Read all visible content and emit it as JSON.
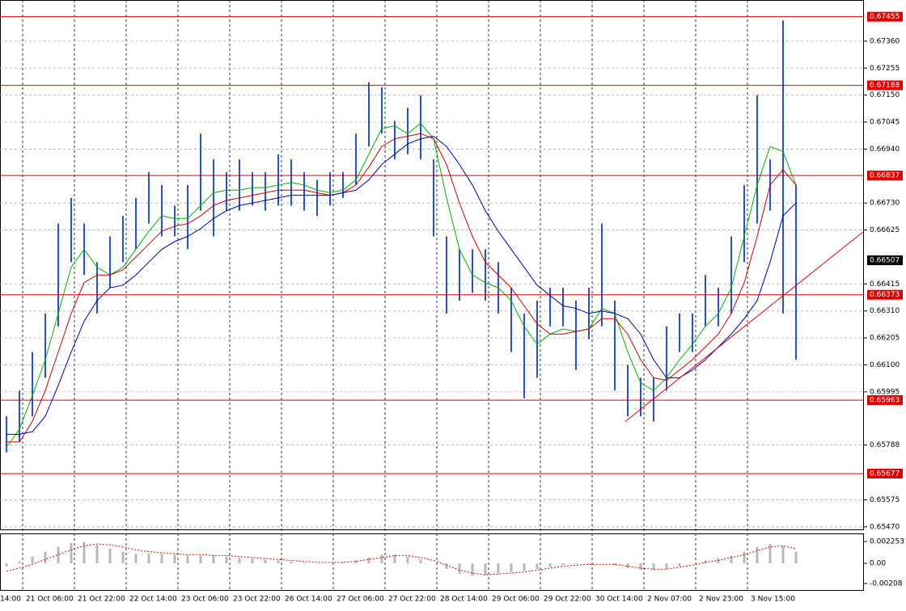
{
  "chart_data": [
    {
      "type": "ohlc",
      "categories": [
        "14:00",
        "21 Oct 06:00",
        null,
        null,
        null,
        "21 Oct 22:00",
        null,
        null,
        null,
        "22 Oct 14:00",
        null,
        null,
        null,
        "23 Oct 06:00",
        null,
        null,
        null,
        "23 Oct 22:00",
        null,
        null,
        null,
        "26 Oct 14:00",
        null,
        null,
        null,
        "27 Oct 06:00",
        null,
        null,
        null,
        "27 Oct 22:00",
        null,
        null,
        null,
        "28 Oct 14:00",
        null,
        null,
        null,
        "29 Oct 06:00",
        null,
        null,
        null,
        "29 Oct 22:00",
        null,
        null,
        null,
        "30 Oct 14:00",
        null,
        null,
        null,
        "2 Nov 07:00",
        null,
        null,
        null,
        "2 Nov 23:00",
        null,
        null,
        null,
        "3 Nov 15:00",
        null,
        null,
        null,
        null
      ],
      "color": "#2a52c8",
      "high": [
        0.659,
        0.66,
        0.6615,
        0.663,
        0.6665,
        0.6675,
        0.6665,
        0.665,
        0.666,
        0.6668,
        0.6675,
        0.6685,
        0.668,
        0.6672,
        0.668,
        0.67,
        0.669,
        0.6685,
        0.669,
        0.6685,
        0.6685,
        0.6692,
        0.669,
        0.6685,
        0.6682,
        0.6685,
        0.6685,
        0.67,
        0.672,
        0.6718,
        0.6705,
        0.671,
        0.6715,
        0.669,
        0.666,
        0.6655,
        0.6655,
        0.6655,
        0.665,
        0.664,
        0.663,
        0.6635,
        0.664,
        0.664,
        0.6635,
        0.664,
        0.6665,
        0.6635,
        0.661,
        0.6605,
        0.6605,
        0.6625,
        0.663,
        0.663,
        0.6645,
        0.664,
        0.666,
        0.668,
        0.6715,
        0.669,
        0.6744,
        0.668
      ],
      "low": [
        0.6576,
        0.658,
        0.659,
        0.6605,
        0.6625,
        0.665,
        0.6645,
        0.663,
        0.664,
        0.665,
        0.6655,
        0.6665,
        0.666,
        0.666,
        0.6655,
        0.667,
        0.666,
        0.667,
        0.667,
        0.6672,
        0.667,
        0.6672,
        0.6672,
        0.667,
        0.6668,
        0.6672,
        0.6675,
        0.668,
        0.6695,
        0.67,
        0.669,
        0.6692,
        0.669,
        0.666,
        0.663,
        0.6635,
        0.6638,
        0.6635,
        0.663,
        0.6615,
        0.6597,
        0.6605,
        0.6625,
        0.6625,
        0.6608,
        0.662,
        0.6625,
        0.66,
        0.659,
        0.659,
        0.6588,
        0.66,
        0.6615,
        0.6615,
        0.6625,
        0.6625,
        0.663,
        0.665,
        0.6665,
        0.667,
        0.663,
        0.6612
      ],
      "moving_averages": [
        {
          "color": "#00b400",
          "values": [
            0.6578,
            0.6585,
            0.6598,
            0.6612,
            0.663,
            0.6648,
            0.6655,
            0.6648,
            0.6645,
            0.6648,
            0.6655,
            0.6662,
            0.6668,
            0.6667,
            0.6667,
            0.6672,
            0.6677,
            0.6678,
            0.6678,
            0.6679,
            0.6679,
            0.668,
            0.6681,
            0.668,
            0.6678,
            0.6677,
            0.6678,
            0.6682,
            0.6692,
            0.6702,
            0.6703,
            0.67,
            0.6704,
            0.6698,
            0.6675,
            0.6655,
            0.6645,
            0.6642,
            0.664,
            0.6635,
            0.6625,
            0.6618,
            0.6622,
            0.6624,
            0.6623,
            0.6624,
            0.6632,
            0.663,
            0.6615,
            0.6603,
            0.66,
            0.6605,
            0.6612,
            0.6618,
            0.6625,
            0.663,
            0.664,
            0.666,
            0.668,
            0.6695,
            0.6693,
            0.668
          ]
        },
        {
          "color": "#d00000",
          "values": [
            0.658,
            0.658,
            0.6588,
            0.66,
            0.6615,
            0.663,
            0.6642,
            0.6645,
            0.6645,
            0.6647,
            0.6652,
            0.6657,
            0.6662,
            0.6664,
            0.6665,
            0.6668,
            0.6672,
            0.6674,
            0.6675,
            0.6676,
            0.6677,
            0.6678,
            0.6678,
            0.6678,
            0.6677,
            0.6676,
            0.6677,
            0.668,
            0.6687,
            0.6695,
            0.6698,
            0.6699,
            0.67,
            0.6698,
            0.6688,
            0.6673,
            0.666,
            0.665,
            0.6645,
            0.664,
            0.6633,
            0.6626,
            0.6622,
            0.6622,
            0.6623,
            0.6624,
            0.6628,
            0.6628,
            0.6622,
            0.6612,
            0.6605,
            0.6604,
            0.6608,
            0.6612,
            0.6617,
            0.6622,
            0.663,
            0.6642,
            0.666,
            0.668,
            0.6686,
            0.668
          ]
        },
        {
          "color": "#0000b0",
          "values": [
            0.6583,
            0.6583,
            0.6584,
            0.659,
            0.6602,
            0.6615,
            0.6627,
            0.6635,
            0.664,
            0.6641,
            0.6645,
            0.665,
            0.6655,
            0.6658,
            0.666,
            0.6663,
            0.6667,
            0.667,
            0.6672,
            0.6673,
            0.6674,
            0.6675,
            0.6676,
            0.6676,
            0.6676,
            0.6676,
            0.6677,
            0.6678,
            0.6682,
            0.6688,
            0.6692,
            0.6696,
            0.6698,
            0.6699,
            0.6695,
            0.6688,
            0.668,
            0.667,
            0.6662,
            0.6655,
            0.6648,
            0.6641,
            0.6637,
            0.6633,
            0.6632,
            0.663,
            0.6631,
            0.663,
            0.6628,
            0.6622,
            0.6612,
            0.6605,
            0.6605,
            0.6608,
            0.6612,
            0.6617,
            0.6622,
            0.6628,
            0.6635,
            0.665,
            0.6668,
            0.6673
          ]
        }
      ],
      "levels": [
        0.67455,
        0.67188,
        0.66837,
        0.66373,
        0.65963,
        0.65677
      ],
      "level_color": "#e00000",
      "last": 0.66507,
      "trendline": [
        0.6588,
        0.6662
      ],
      "ylim": [
        0.6546,
        0.6752
      ],
      "yticks": [
        {
          "value": 0.6736,
          "label": "0.67360"
        },
        0.67255,
        {
          "value": 0.6715,
          "label": "0.67150"
        },
        0.67045,
        {
          "value": 0.6694,
          "label": "0.66940"
        },
        {
          "value": 0.6673,
          "label": "0.66730"
        },
        0.66625,
        0.66415,
        {
          "value": 0.6631,
          "label": "0.66310"
        },
        0.66205,
        {
          "value": 0.661,
          "label": "0.66100"
        },
        0.65995,
        0.65788,
        0.65575,
        {
          "value": 0.6547,
          "label": "0.65470"
        }
      ],
      "grid": true
    },
    {
      "type": "oscillator",
      "histogram_color": "#b8b8b8",
      "signal_color": "#d00000",
      "values": [
        -0.0003,
        0.0002,
        0.0007,
        0.0012,
        0.0017,
        0.0021,
        0.0022,
        0.0019,
        0.0015,
        0.0012,
        0.001,
        0.001,
        0.001,
        0.0009,
        0.0008,
        0.0008,
        0.0008,
        0.0007,
        0.0006,
        0.0005,
        0.0004,
        0.0003,
        0.0002,
        0.0001,
        0.0,
        0.0,
        0.0001,
        0.0003,
        0.0006,
        0.0009,
        0.0009,
        0.0007,
        0.0004,
        0.0,
        -0.0006,
        -0.0011,
        -0.0013,
        -0.0012,
        -0.001,
        -0.0009,
        -0.0008,
        -0.0006,
        -0.0004,
        -0.0002,
        -0.0001,
        -0.0001,
        0.0,
        -0.0002,
        -0.0005,
        -0.0007,
        -0.0007,
        -0.0006,
        -0.0003,
        0.0,
        0.0003,
        0.0005,
        0.0008,
        0.0012,
        0.0017,
        0.002,
        0.0018,
        0.0012
      ],
      "signal": [
        -0.0008,
        -0.0005,
        -0.0001,
        0.0004,
        0.0009,
        0.0014,
        0.0018,
        0.002,
        0.0019,
        0.0017,
        0.0014,
        0.0012,
        0.0011,
        0.001,
        0.0009,
        0.0009,
        0.0008,
        0.0008,
        0.0007,
        0.0006,
        0.0005,
        0.0004,
        0.0003,
        0.0002,
        0.0001,
        0.0001,
        0.0001,
        0.0002,
        0.0004,
        0.0006,
        0.0008,
        0.0008,
        0.0006,
        0.0003,
        -0.0002,
        -0.0007,
        -0.001,
        -0.0012,
        -0.0011,
        -0.001,
        -0.0009,
        -0.0007,
        -0.0005,
        -0.0003,
        -0.0002,
        -0.0001,
        -0.0001,
        -0.0001,
        -0.0003,
        -0.0005,
        -0.0006,
        -0.0006,
        -0.0004,
        -0.0002,
        0.0001,
        0.0003,
        0.0006,
        0.0009,
        0.0013,
        0.0017,
        0.0018,
        0.0015
      ],
      "ylim": [
        -0.00275,
        0.00292
      ],
      "yticks": [
        0.002253,
        {
          "value": 0,
          "label": "0.00"
        },
        -0.00208
      ]
    }
  ]
}
